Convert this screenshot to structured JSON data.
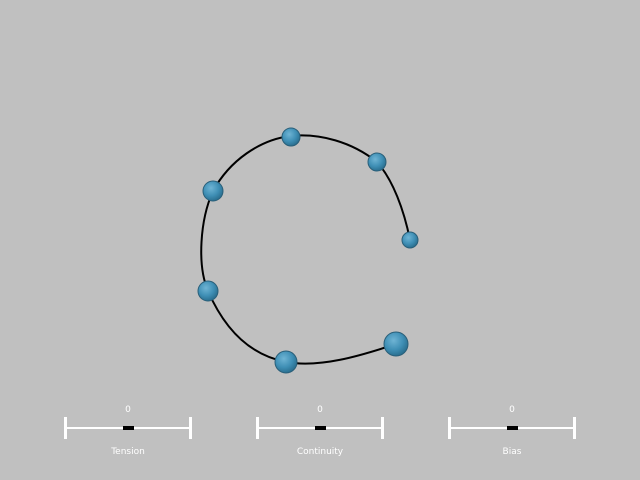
{
  "colors": {
    "background": "#c0c0c0",
    "curve": "#000000",
    "control_point_fill": "#3f8fb5",
    "control_point_stroke": "#2a5f79",
    "slider_track": "#ffffff",
    "slider_thumb": "#000000",
    "slider_text": "#ffffff"
  },
  "control_points": [
    {
      "name": "control-point-1",
      "size": "large"
    },
    {
      "name": "control-point-2",
      "size": "large"
    },
    {
      "name": "control-point-3",
      "size": "medium"
    },
    {
      "name": "control-point-4",
      "size": "medium"
    },
    {
      "name": "control-point-5",
      "size": "medium"
    },
    {
      "name": "control-point-6",
      "size": "medium"
    },
    {
      "name": "control-point-7",
      "size": "small"
    }
  ],
  "sliders": {
    "tension": {
      "label": "Tension",
      "value_text": "0",
      "value": 0,
      "min": -1,
      "max": 1
    },
    "continuity": {
      "label": "Continuity",
      "value_text": "0",
      "value": 0,
      "min": -1,
      "max": 1
    },
    "bias": {
      "label": "Bias",
      "value_text": "0",
      "value": 0,
      "min": -1,
      "max": 1
    }
  }
}
